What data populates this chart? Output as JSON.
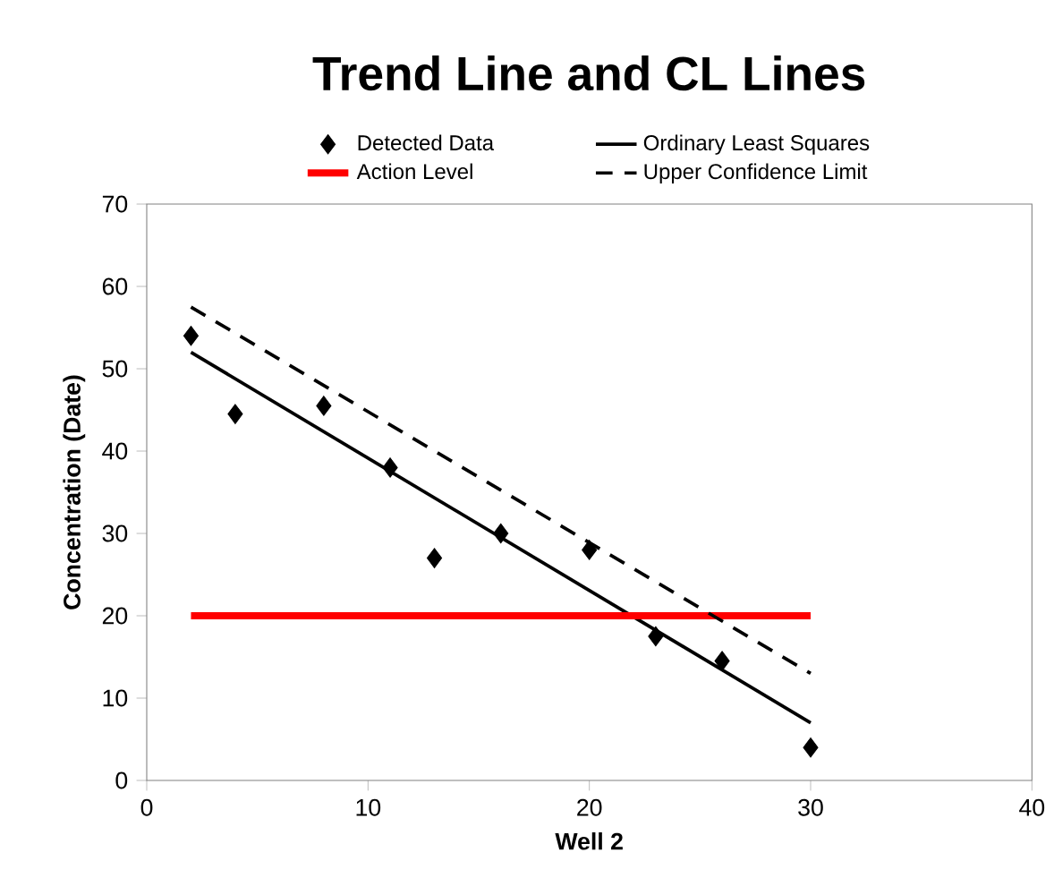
{
  "chart_data": {
    "type": "line",
    "title": "Trend Line and CL Lines",
    "xlabel": "Well 2",
    "ylabel": "Concentration (Date)",
    "xlim": [
      0,
      40
    ],
    "xticks": [
      0,
      10,
      20,
      30,
      40
    ],
    "ylim": [
      0,
      70
    ],
    "yticks": [
      0,
      10,
      20,
      30,
      40,
      50,
      60,
      70
    ],
    "grid": false,
    "legend": "top",
    "series": [
      {
        "name": "Detected Data",
        "type": "scatter",
        "marker": "diamond",
        "color": "#000000",
        "x": [
          2,
          4,
          8,
          11,
          13,
          16,
          20,
          23,
          26,
          30
        ],
        "values": [
          54,
          44.5,
          45.5,
          38,
          27,
          30,
          28,
          17.5,
          14.5,
          4
        ]
      },
      {
        "name": "Ordinary Least Squares",
        "line_style": "solid",
        "color": "#000000",
        "x": [
          2,
          30
        ],
        "values": [
          52,
          7
        ]
      },
      {
        "name": "Action Level",
        "line_style": "solid",
        "color": "#ff0000",
        "x": [
          2,
          30
        ],
        "values": [
          20,
          20
        ]
      },
      {
        "name": "Upper Confidence Limit",
        "line_style": "dashed",
        "color": "#000000",
        "x": [
          2,
          30
        ],
        "values": [
          57.5,
          13
        ]
      }
    ]
  }
}
